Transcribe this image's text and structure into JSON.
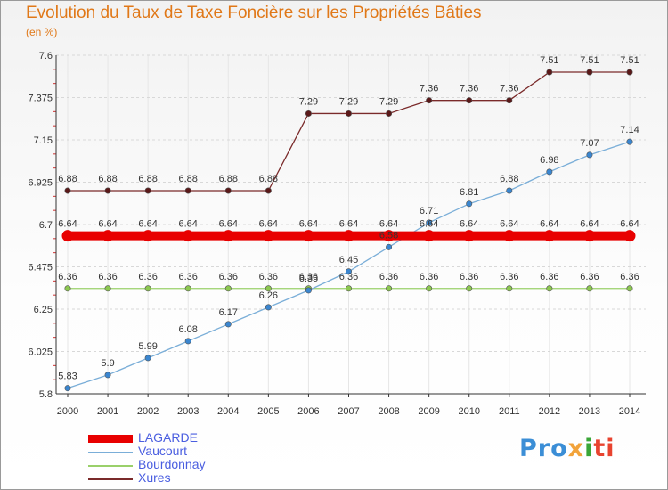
{
  "title": "Evolution du Taux de Taxe Foncière sur les Propriétés Bâties",
  "unit_label": "(en %)",
  "logo": {
    "text": "Proxiti",
    "colors": [
      "#3b8ed6",
      "#f2a33a",
      "#3aa637",
      "#e8432f"
    ]
  },
  "chart_data": {
    "type": "line",
    "title": "Evolution du Taux de Taxe Foncière sur les Propriétés Bâties",
    "ylabel": "(en %)",
    "xlabel": "",
    "ylim": [
      5.8,
      7.6
    ],
    "yticks": [
      5.8,
      6.025,
      6.25,
      6.475,
      6.7,
      6.925,
      7.15,
      7.375,
      7.6
    ],
    "yticklabels": [
      "5.8",
      "6.025",
      "6.25",
      "6.475",
      "6.7",
      "6.925",
      "7.15",
      "7.375",
      "7.6"
    ],
    "x": [
      "2000",
      "2001",
      "2002",
      "2003",
      "2004",
      "2005",
      "2006",
      "2007",
      "2008",
      "2009",
      "2010",
      "2011",
      "2012",
      "2013",
      "2014"
    ],
    "legend_position": "bottom-left",
    "series": [
      {
        "name": "LAGARDE",
        "color": "#e80000",
        "values": [
          6.64,
          6.64,
          6.64,
          6.64,
          6.64,
          6.64,
          6.64,
          6.64,
          6.64,
          6.64,
          6.64,
          6.64,
          6.64,
          6.64,
          6.64
        ],
        "labels": [
          "6.64",
          "6.64",
          "6.64",
          "6.64",
          "6.64",
          "6.64",
          "6.64",
          "6.64",
          "6.64",
          "6.64",
          "6.64",
          "6.64",
          "6.64",
          "6.64",
          "6.64"
        ]
      },
      {
        "name": "Vaucourt",
        "color": "#7aaed8",
        "values": [
          5.83,
          5.9,
          5.99,
          6.08,
          6.17,
          6.26,
          6.35,
          6.45,
          6.58,
          6.71,
          6.81,
          6.88,
          6.98,
          7.07,
          7.14
        ],
        "labels": [
          "5.83",
          "5.9",
          "5.99",
          "6.08",
          "6.17",
          "6.26",
          "6.35",
          "6.45",
          "6.58",
          "6.71",
          "6.81",
          "6.88",
          "6.98",
          "7.07",
          "7.14"
        ]
      },
      {
        "name": "Bourdonnay",
        "color": "#9ad06a",
        "values": [
          6.36,
          6.36,
          6.36,
          6.36,
          6.36,
          6.36,
          6.36,
          6.36,
          6.36,
          6.36,
          6.36,
          6.36,
          6.36,
          6.36,
          6.36
        ],
        "labels": [
          "6.36",
          "6.36",
          "6.36",
          "6.36",
          "6.36",
          "6.36",
          "6.36",
          "6.36",
          "6.36",
          "6.36",
          "6.36",
          "6.36",
          "6.36",
          "6.36",
          "6.36"
        ]
      },
      {
        "name": "Xures",
        "color": "#7a2a2a",
        "values": [
          6.88,
          6.88,
          6.88,
          6.88,
          6.88,
          6.88,
          7.29,
          7.29,
          7.29,
          7.36,
          7.36,
          7.36,
          7.51,
          7.51,
          7.51
        ],
        "labels": [
          "6.88",
          "6.88",
          "6.88",
          "6.88",
          "6.88",
          "6.88",
          "7.29",
          "7.29",
          "7.29",
          "7.36",
          "7.36",
          "7.36",
          "7.51",
          "7.51",
          "7.51"
        ]
      }
    ]
  }
}
